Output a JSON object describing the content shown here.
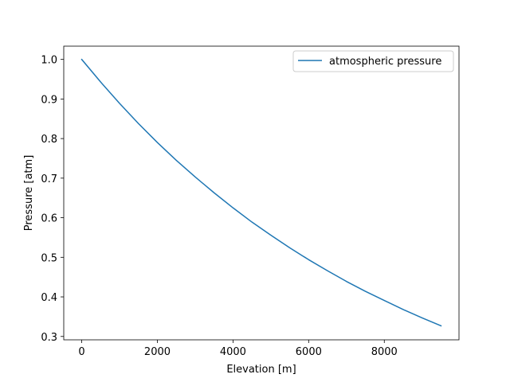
{
  "chart_data": {
    "type": "line",
    "title": "",
    "xlabel": "Elevation [m]",
    "ylabel": "Pressure [atm]",
    "xlim": [
      -475,
      9975
    ],
    "ylim": [
      0.2915,
      1.0335
    ],
    "xticks": [
      0,
      2000,
      4000,
      6000,
      8000
    ],
    "xtick_labels": [
      "0",
      "2000",
      "4000",
      "6000",
      "8000"
    ],
    "yticks": [
      0.3,
      0.4,
      0.5,
      0.6,
      0.7,
      0.8,
      0.9,
      1.0
    ],
    "ytick_labels": [
      "0.3",
      "0.4",
      "0.5",
      "0.6",
      "0.7",
      "0.8",
      "0.9",
      "1.0"
    ],
    "grid": false,
    "legend_position": "top-right",
    "series": [
      {
        "name": "atmospheric pressure",
        "color": "#1f77b4",
        "x": [
          0,
          500,
          1000,
          1500,
          2000,
          2500,
          3000,
          3500,
          4000,
          4500,
          5000,
          5500,
          6000,
          6500,
          7000,
          7500,
          8000,
          8500,
          9000,
          9500
        ],
        "y": [
          1.0,
          0.943,
          0.889,
          0.838,
          0.79,
          0.745,
          0.703,
          0.663,
          0.625,
          0.589,
          0.556,
          0.524,
          0.494,
          0.466,
          0.439,
          0.414,
          0.391,
          0.368,
          0.347,
          0.327
        ]
      }
    ]
  }
}
